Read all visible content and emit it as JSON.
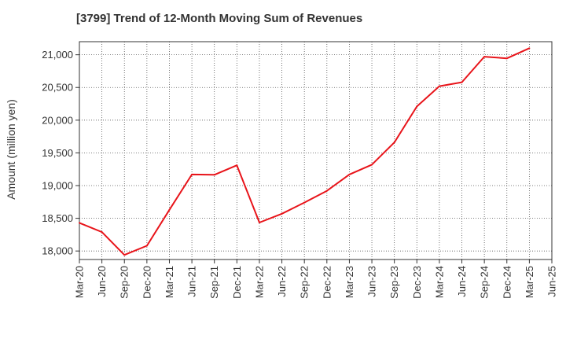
{
  "chart_data": {
    "type": "line",
    "title": "[3799]  Trend of 12-Month Moving Sum of Revenues",
    "xlabel": "",
    "ylabel": "Amount (million yen)",
    "x_ticks": [
      "Mar-20",
      "Jun-20",
      "Sep-20",
      "Dec-20",
      "Mar-21",
      "Jun-21",
      "Sep-21",
      "Dec-21",
      "Mar-22",
      "Jun-22",
      "Sep-22",
      "Dec-22",
      "Mar-23",
      "Jun-23",
      "Sep-23",
      "Dec-23",
      "Mar-24",
      "Jun-24",
      "Sep-24",
      "Dec-24",
      "Mar-25",
      "Jun-25"
    ],
    "y_ticks": [
      "18,000",
      "18,500",
      "19,000",
      "19,500",
      "20,000",
      "20,500",
      "21,000"
    ],
    "ylim": [
      17870,
      21200
    ],
    "grid": true,
    "series": [
      {
        "color": "#e8141a",
        "x": [
          "Mar-20",
          "Jun-20",
          "Sep-20",
          "Dec-20",
          "Mar-21",
          "Jun-21",
          "Sep-21",
          "Dec-21",
          "Mar-22",
          "Jun-22",
          "Sep-22",
          "Dec-22",
          "Mar-23",
          "Jun-23",
          "Sep-23",
          "Dec-23",
          "Mar-24",
          "Jun-24",
          "Sep-24",
          "Dec-24",
          "Mar-25"
        ],
        "values": [
          18430,
          18290,
          17940,
          18080,
          18630,
          19170,
          19165,
          19310,
          18435,
          18570,
          18740,
          18920,
          19170,
          19320,
          19660,
          20210,
          20520,
          20580,
          20970,
          20945,
          21100
        ]
      }
    ]
  }
}
